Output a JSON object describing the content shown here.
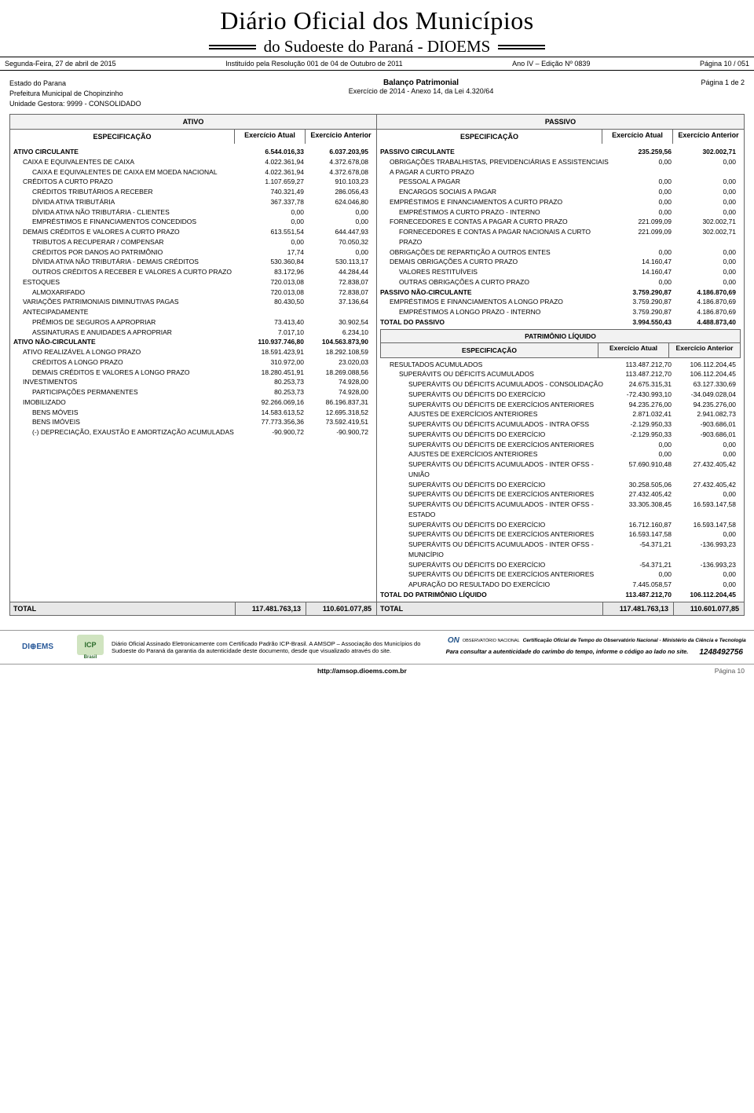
{
  "masthead": {
    "title": "Diário Oficial dos Municípios",
    "subtitle": "do Sudoeste do Paraná - DIOEMS"
  },
  "header_bar": {
    "left": "Segunda-Feira, 27 de abril de 2015",
    "center": "Instituído pela Resolução 001 de 04 de Outubro de 2011",
    "right1": "Ano IV – Edição Nº 0839",
    "right2": "Página 10 / 051"
  },
  "meta": {
    "estado": "Estado do Parana",
    "prefeitura": "Prefeitura Municipal de Chopinzinho",
    "unidade": "Unidade Gestora: 9999 - CONSOLIDADO",
    "report_title": "Balanço Patrimonial",
    "report_sub": "Exercício de 2014 - Anexo 14, da Lei 4.320/64",
    "page": "Página 1 de 2"
  },
  "groups": {
    "ativo": "ATIVO",
    "passivo": "PASSIVO",
    "spec": "ESPECIFICAÇÃO",
    "col_atual": "Exercício Atual",
    "col_anterior": "Exercício Anterior",
    "patrimonio_title": "PATRIMÔNIO LÍQUIDO"
  },
  "ativo_rows": [
    {
      "label": "ATIVO CIRCULANTE",
      "v1": "6.544.016,33",
      "v2": "6.037.203,95",
      "bold": true,
      "indent": 0
    },
    {
      "label": "CAIXA E EQUIVALENTES DE CAIXA",
      "v1": "4.022.361,94",
      "v2": "4.372.678,08",
      "indent": 1
    },
    {
      "label": "CAIXA E EQUIVALENTES DE CAIXA EM MOEDA NACIONAL",
      "v1": "4.022.361,94",
      "v2": "4.372.678,08",
      "indent": 2
    },
    {
      "label": "CRÉDITOS A CURTO PRAZO",
      "v1": "1.107.659,27",
      "v2": "910.103,23",
      "indent": 1
    },
    {
      "label": "CRÉDITOS TRIBUTÁRIOS A RECEBER",
      "v1": "740.321,49",
      "v2": "286.056,43",
      "indent": 2
    },
    {
      "label": "DÍVIDA ATIVA TRIBUTÁRIA",
      "v1": "367.337,78",
      "v2": "624.046,80",
      "indent": 2
    },
    {
      "label": "DÍVIDA ATIVA NÃO TRIBUTÁRIA - CLIENTES",
      "v1": "0,00",
      "v2": "0,00",
      "indent": 2
    },
    {
      "label": "EMPRÉSTIMOS E FINANCIAMENTOS CONCEDIDOS",
      "v1": "0,00",
      "v2": "0,00",
      "indent": 2
    },
    {
      "label": "DEMAIS CRÉDITOS E VALORES A CURTO PRAZO",
      "v1": "613.551,54",
      "v2": "644.447,93",
      "indent": 1
    },
    {
      "label": "TRIBUTOS A RECUPERAR / COMPENSAR",
      "v1": "0,00",
      "v2": "70.050,32",
      "indent": 2
    },
    {
      "label": "CRÉDITOS POR DANOS AO PATRIMÔNIO",
      "v1": "17,74",
      "v2": "0,00",
      "indent": 2
    },
    {
      "label": "DÍVIDA ATIVA NÃO TRIBUTÁRIA - DEMAIS CRÉDITOS",
      "v1": "530.360,84",
      "v2": "530.113,17",
      "indent": 2
    },
    {
      "label": "OUTROS CRÉDITOS A RECEBER E VALORES A CURTO PRAZO",
      "v1": "83.172,96",
      "v2": "44.284,44",
      "indent": 2
    },
    {
      "label": "ESTOQUES",
      "v1": "720.013,08",
      "v2": "72.838,07",
      "indent": 1
    },
    {
      "label": "ALMOXARIFADO",
      "v1": "720.013,08",
      "v2": "72.838,07",
      "indent": 2
    },
    {
      "label": "VARIAÇÕES PATRIMONIAIS DIMINUTIVAS PAGAS ANTECIPADAMENTE",
      "v1": "80.430,50",
      "v2": "37.136,64",
      "indent": 1
    },
    {
      "label": "PRÊMIOS DE SEGUROS A APROPRIAR",
      "v1": "73.413,40",
      "v2": "30.902,54",
      "indent": 2
    },
    {
      "label": "ASSINATURAS E ANUIDADES A APROPRIAR",
      "v1": "7.017,10",
      "v2": "6.234,10",
      "indent": 2
    },
    {
      "label": "ATIVO NÃO-CIRCULANTE",
      "v1": "110.937.746,80",
      "v2": "104.563.873,90",
      "bold": true,
      "indent": 0
    },
    {
      "label": "ATIVO REALIZÁVEL A LONGO PRAZO",
      "v1": "18.591.423,91",
      "v2": "18.292.108,59",
      "indent": 1
    },
    {
      "label": "CRÉDITOS A LONGO PRAZO",
      "v1": "310.972,00",
      "v2": "23.020,03",
      "indent": 2
    },
    {
      "label": "DEMAIS CRÉDITOS E VALORES A LONGO PRAZO",
      "v1": "18.280.451,91",
      "v2": "18.269.088,56",
      "indent": 2
    },
    {
      "label": "INVESTIMENTOS",
      "v1": "80.253,73",
      "v2": "74.928,00",
      "indent": 1
    },
    {
      "label": "PARTICIPAÇÕES PERMANENTES",
      "v1": "80.253,73",
      "v2": "74.928,00",
      "indent": 2
    },
    {
      "label": "IMOBILIZADO",
      "v1": "92.266.069,16",
      "v2": "86.196.837,31",
      "indent": 1
    },
    {
      "label": "BENS MÓVEIS",
      "v1": "14.583.613,52",
      "v2": "12.695.318,52",
      "indent": 2
    },
    {
      "label": "BENS IMÓVEIS",
      "v1": "77.773.356,36",
      "v2": "73.592.419,51",
      "indent": 2
    },
    {
      "label": "(-) DEPRECIAÇÃO, EXAUSTÃO E AMORTIZAÇÃO ACUMULADAS",
      "v1": "-90.900,72",
      "v2": "-90.900,72",
      "indent": 2
    }
  ],
  "passivo_rows": [
    {
      "label": "PASSIVO CIRCULANTE",
      "v1": "235.259,56",
      "v2": "302.002,71",
      "bold": true,
      "indent": 0
    },
    {
      "label": "OBRIGAÇÕES TRABALHISTAS, PREVIDENCIÁRIAS E ASSISTENCIAIS A PAGAR A CURTO PRAZO",
      "v1": "0,00",
      "v2": "0,00",
      "indent": 1
    },
    {
      "label": "PESSOAL A PAGAR",
      "v1": "0,00",
      "v2": "0,00",
      "indent": 2
    },
    {
      "label": "ENCARGOS SOCIAIS A PAGAR",
      "v1": "0,00",
      "v2": "0,00",
      "indent": 2
    },
    {
      "label": "EMPRÉSTIMOS E FINANCIAMENTOS A CURTO PRAZO",
      "v1": "0,00",
      "v2": "0,00",
      "indent": 1
    },
    {
      "label": "EMPRÉSTIMOS A CURTO PRAZO - INTERNO",
      "v1": "0,00",
      "v2": "0,00",
      "indent": 2
    },
    {
      "label": "FORNECEDORES E CONTAS A PAGAR A CURTO PRAZO",
      "v1": "221.099,09",
      "v2": "302.002,71",
      "indent": 1
    },
    {
      "label": "FORNECEDORES E CONTAS A PAGAR NACIONAIS A CURTO PRAZO",
      "v1": "221.099,09",
      "v2": "302.002,71",
      "indent": 2
    },
    {
      "label": "OBRIGAÇÕES DE REPARTIÇÃO A OUTROS ENTES",
      "v1": "0,00",
      "v2": "0,00",
      "indent": 1
    },
    {
      "label": "DEMAIS OBRIGAÇÕES A CURTO PRAZO",
      "v1": "14.160,47",
      "v2": "0,00",
      "indent": 1
    },
    {
      "label": "VALORES RESTITUÍVEIS",
      "v1": "14.160,47",
      "v2": "0,00",
      "indent": 2
    },
    {
      "label": "OUTRAS OBRIGAÇÕES A CURTO PRAZO",
      "v1": "0,00",
      "v2": "0,00",
      "indent": 2
    },
    {
      "label": "PASSIVO NÃO-CIRCULANTE",
      "v1": "3.759.290,87",
      "v2": "4.186.870,69",
      "bold": true,
      "indent": 0
    },
    {
      "label": "EMPRÉSTIMOS E FINANCIAMENTOS A LONGO PRAZO",
      "v1": "3.759.290,87",
      "v2": "4.186.870,69",
      "indent": 1
    },
    {
      "label": "EMPRÉSTIMOS A LONGO PRAZO - INTERNO",
      "v1": "3.759.290,87",
      "v2": "4.186.870,69",
      "indent": 2
    },
    {
      "label": "TOTAL DO PASSIVO",
      "v1": "3.994.550,43",
      "v2": "4.488.873,40",
      "bold": true,
      "indent": 0
    }
  ],
  "patrimonio_rows": [
    {
      "label": "RESULTADOS ACUMULADOS",
      "v1": "113.487.212,70",
      "v2": "106.112.204,45",
      "indent": 1
    },
    {
      "label": "SUPERÁVITS OU DÉFICITS ACUMULADOS",
      "v1": "113.487.212,70",
      "v2": "106.112.204,45",
      "indent": 2
    },
    {
      "label": "SUPERÁVITS OU DÉFICITS ACUMULADOS - CONSOLIDAÇÃO",
      "v1": "24.675.315,31",
      "v2": "63.127.330,69",
      "indent": 3
    },
    {
      "label": "SUPERÁVITS OU DÉFICITS DO EXERCÍCIO",
      "v1": "-72.430.993,10",
      "v2": "-34.049.028,04",
      "indent": 3
    },
    {
      "label": "SUPERÁVITS OU DÉFICITS DE EXERCÍCIOS ANTERIORES",
      "v1": "94.235.276,00",
      "v2": "94.235.276,00",
      "indent": 3
    },
    {
      "label": "AJUSTES DE EXERCÍCIOS ANTERIORES",
      "v1": "2.871.032,41",
      "v2": "2.941.082,73",
      "indent": 3
    },
    {
      "label": "SUPERÁVITS OU DÉFICITS ACUMULADOS - INTRA OFSS",
      "v1": "-2.129.950,33",
      "v2": "-903.686,01",
      "indent": 3
    },
    {
      "label": "SUPERÁVITS OU DÉFICITS DO EXERCÍCIO",
      "v1": "-2.129.950,33",
      "v2": "-903.686,01",
      "indent": 3
    },
    {
      "label": "SUPERÁVITS OU DÉFICITS DE EXERCÍCIOS ANTERIORES",
      "v1": "0,00",
      "v2": "0,00",
      "indent": 3
    },
    {
      "label": "AJUSTES DE EXERCÍCIOS ANTERIORES",
      "v1": "0,00",
      "v2": "0,00",
      "indent": 3
    },
    {
      "label": "SUPERÁVITS OU DÉFICITS ACUMULADOS - INTER OFSS - UNIÃO",
      "v1": "57.690.910,48",
      "v2": "27.432.405,42",
      "indent": 3
    },
    {
      "label": "SUPERÁVITS OU DÉFICITS DO EXERCÍCIO",
      "v1": "30.258.505,06",
      "v2": "27.432.405,42",
      "indent": 3
    },
    {
      "label": "SUPERÁVITS OU DÉFICITS DE EXERCÍCIOS ANTERIORES",
      "v1": "27.432.405,42",
      "v2": "0,00",
      "indent": 3
    },
    {
      "label": "SUPERÁVITS OU DÉFICITS ACUMULADOS - INTER OFSS - ESTADO",
      "v1": "33.305.308,45",
      "v2": "16.593.147,58",
      "indent": 3
    },
    {
      "label": "SUPERÁVITS OU DÉFICITS DO EXERCÍCIO",
      "v1": "16.712.160,87",
      "v2": "16.593.147,58",
      "indent": 3
    },
    {
      "label": "SUPERÁVITS OU DÉFICITS DE EXERCÍCIOS ANTERIORES",
      "v1": "16.593.147,58",
      "v2": "0,00",
      "indent": 3
    },
    {
      "label": "SUPERÁVITS OU DÉFICITS ACUMULADOS - INTER OFSS - MUNICÍPIO",
      "v1": "-54.371,21",
      "v2": "-136.993,23",
      "indent": 3
    },
    {
      "label": "SUPERÁVITS OU DÉFICITS DO EXERCÍCIO",
      "v1": "-54.371,21",
      "v2": "-136.993,23",
      "indent": 3
    },
    {
      "label": "SUPERÁVITS OU DÉFICITS DE EXERCÍCIOS ANTERIORES",
      "v1": "0,00",
      "v2": "0,00",
      "indent": 3
    },
    {
      "label": "APURAÇÃO DO RESULTADO DO EXERCÍCIO",
      "v1": "7.445.058,57",
      "v2": "0,00",
      "indent": 3
    },
    {
      "label": "TOTAL DO PATRIMÔNIO LÍQUIDO",
      "v1": "113.487.212,70",
      "v2": "106.112.204,45",
      "bold": true,
      "indent": 0
    }
  ],
  "totals": {
    "left_label": "TOTAL",
    "left_v1": "117.481.763,13",
    "left_v2": "110.601.077,85",
    "right_label": "TOTAL",
    "right_v1": "117.481.763,13",
    "right_v2": "110.601.077,85"
  },
  "footer": {
    "logo": "DI⊕EMS",
    "icp": "ICP",
    "icp_sub": "Brasil",
    "text": "Diário Oficial Assinado Eletronicamente com Certificado Padrão ICP-Brasil. A AMSOP – Associação dos Municípios do Sudoeste do Paraná da garantia da autenticidade deste documento, desde que visualizado através do site.",
    "on_label": "ON",
    "on_sub": "OBSERVATÓRIO NACIONAL",
    "cert_title": "Certificação Oficial de Tempo do Observatório Nacional - Ministério da Ciência e Tecnologia",
    "consult": "Para consultar a autenticidade do carimbo do tempo, informe o código ao lado no site.",
    "code": "1248492756"
  },
  "bottom": {
    "url": "http://amsop.dioems.com.br",
    "page": "Página 10"
  },
  "colors": {
    "header_bg": "#f2f2f2",
    "border": "#666666",
    "total_bg": "#e8e8e8"
  }
}
